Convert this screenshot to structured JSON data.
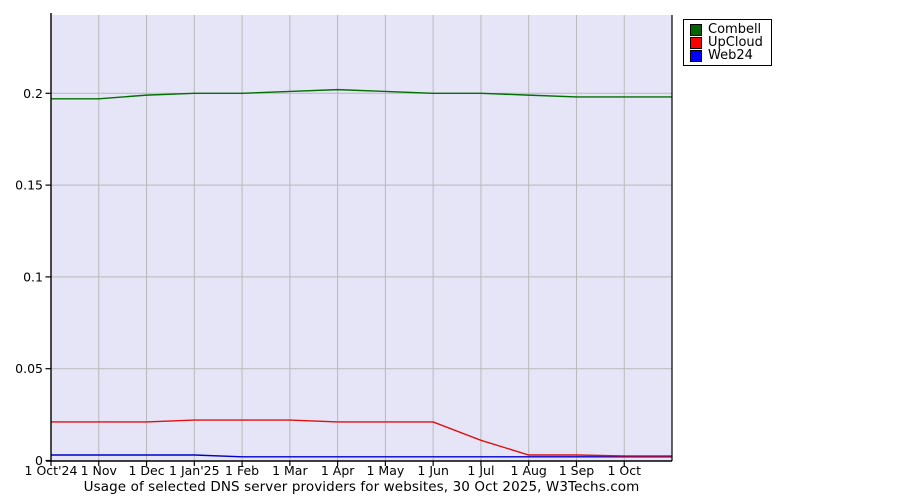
{
  "title": "Usage of selected DNS server providers for websites, 30 Oct 2025, W3Techs.com",
  "legend": {
    "items": [
      {
        "label": "Combell",
        "color": "#006400"
      },
      {
        "label": "UpCloud",
        "color": "#ff0000"
      },
      {
        "label": "Web24",
        "color": "#0000ff"
      }
    ]
  },
  "colors": {
    "plot_bg": "#e5e5f7",
    "grid": "#b9b9b9",
    "axis": "#000000",
    "text": "#000000"
  },
  "chart_data": {
    "type": "line",
    "title": "Usage of selected DNS server providers for websites, 30 Oct 2025, W3Techs.com",
    "xlabel": "",
    "ylabel": "",
    "grid": true,
    "legend_position": "top-right",
    "ylim": [
      0,
      0.2427
    ],
    "y_ticks": [
      0,
      0.05,
      0.1,
      0.15,
      0.2
    ],
    "y_tick_labels": [
      "0",
      "0.05",
      "0.1",
      "0.15",
      "0.2"
    ],
    "categories": [
      "1 Oct'24",
      "1 Nov",
      "1 Dec",
      "1 Jan'25",
      "1 Feb",
      "1 Mar",
      "1 Apr",
      "1 May",
      "1 Jun",
      "1 Jul",
      "1 Aug",
      "1 Sep",
      "1 Oct"
    ],
    "end_date_label": "30 Oct 2025",
    "series": [
      {
        "name": "Combell",
        "color": "#007000",
        "values": [
          0.197,
          0.197,
          0.199,
          0.2,
          0.2,
          0.201,
          0.202,
          0.201,
          0.2,
          0.2,
          0.199,
          0.198,
          0.198
        ],
        "end_value": 0.198
      },
      {
        "name": "UpCloud",
        "color": "#e01010",
        "values": [
          0.021,
          0.021,
          0.021,
          0.022,
          0.022,
          0.022,
          0.021,
          0.021,
          0.021,
          0.011,
          0.003,
          0.003,
          0.0025
        ],
        "end_value": 0.0025
      },
      {
        "name": "Web24",
        "color": "#0000cc",
        "values": [
          0.003,
          0.003,
          0.003,
          0.003,
          0.002,
          0.002,
          0.002,
          0.002,
          0.002,
          0.002,
          0.002,
          0.002,
          0.002
        ],
        "end_value": 0.002
      }
    ]
  }
}
